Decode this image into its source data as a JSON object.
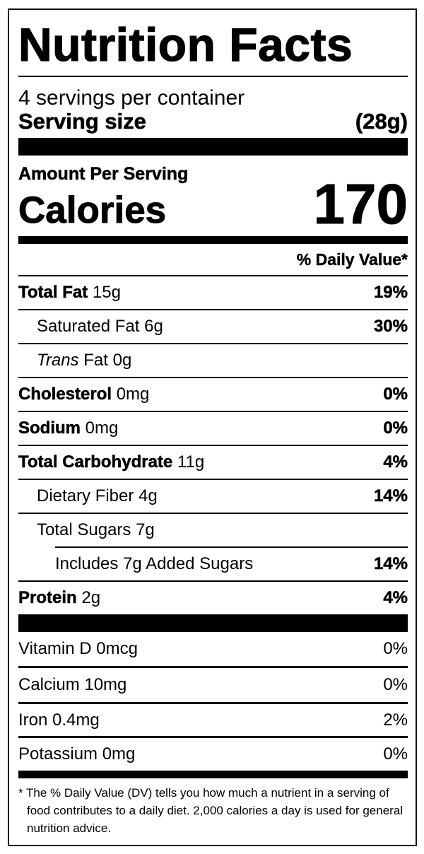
{
  "title": "Nutrition Facts",
  "servings_per_container": "4 servings per container",
  "serving_size": {
    "label": "Serving size",
    "value": "(28g)"
  },
  "amount_per_serving": "Amount Per Serving",
  "calories": {
    "label": "Calories",
    "value": "170"
  },
  "daily_value_header": "% Daily Value*",
  "nutrients": [
    {
      "name": "Total Fat",
      "amount": "15g",
      "dv": "19%"
    },
    {
      "name": "Saturated Fat",
      "amount": "6g",
      "dv": "30%"
    },
    {
      "name": "Trans",
      "name_suffix": "Fat",
      "amount": "0g",
      "dv": ""
    },
    {
      "name": "Cholesterol",
      "amount": "0mg",
      "dv": "0%"
    },
    {
      "name": "Sodium",
      "amount": "0mg",
      "dv": "0%"
    },
    {
      "name": "Total Carbohydrate",
      "amount": "11g",
      "dv": "4%"
    },
    {
      "name": "Dietary Fiber",
      "amount": "4g",
      "dv": "14%"
    },
    {
      "name": "Total Sugars",
      "amount": "7g",
      "dv": ""
    },
    {
      "name": "Includes 7g Added Sugars",
      "amount": "",
      "dv": "14%"
    },
    {
      "name": "Protein",
      "amount": "2g",
      "dv": "4%"
    }
  ],
  "vitamins": [
    {
      "text": "Vitamin D 0mcg",
      "dv": "0%"
    },
    {
      "text": "Calcium 10mg",
      "dv": "0%"
    },
    {
      "text": "Iron 0.4mg",
      "dv": "2%"
    },
    {
      "text": "Potassium 0mg",
      "dv": "0%"
    }
  ],
  "footnote": "* The % Daily Value (DV) tells you how much a nutrient in a serving of food contributes to a daily diet. 2,000 calories a day is used for general nutrition advice."
}
